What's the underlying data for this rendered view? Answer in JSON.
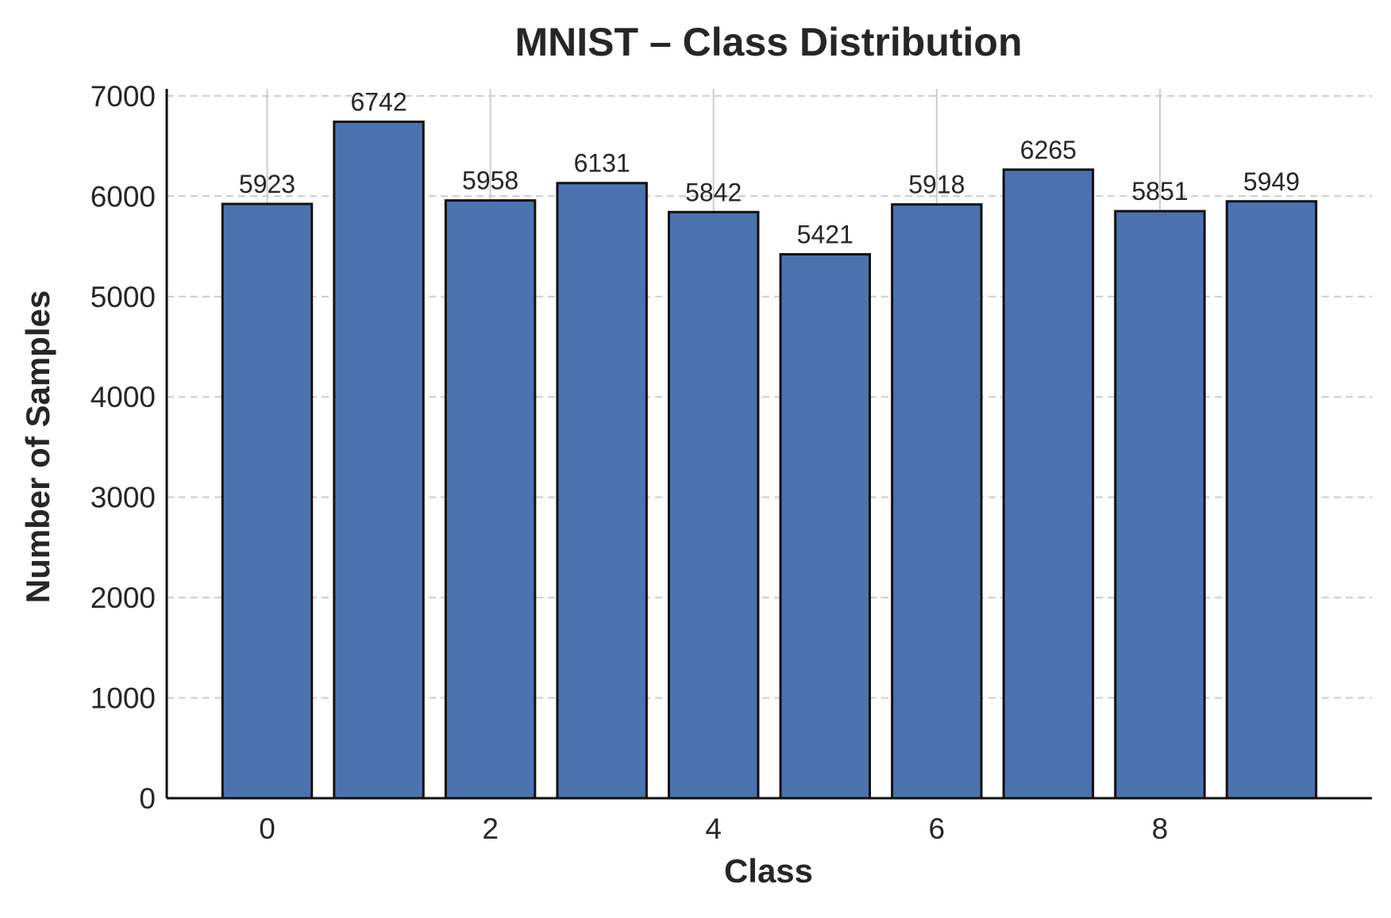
{
  "chart_data": {
    "type": "bar",
    "title": "MNIST – Class Distribution",
    "xlabel": "Class",
    "ylabel": "Number of Samples",
    "categories": [
      0,
      1,
      2,
      3,
      4,
      5,
      6,
      7,
      8,
      9
    ],
    "values": [
      5923,
      6742,
      5958,
      6131,
      5842,
      5421,
      5918,
      6265,
      5851,
      5949
    ],
    "data_labels": [
      "5923",
      "6742",
      "5958",
      "6131",
      "5842",
      "5421",
      "5918",
      "6265",
      "5851",
      "5949"
    ],
    "xticks": [
      "0",
      "2",
      "4",
      "6",
      "8"
    ],
    "xtick_values": [
      0,
      2,
      4,
      6,
      8
    ],
    "yticks": [
      "0",
      "1000",
      "2000",
      "3000",
      "4000",
      "5000",
      "6000",
      "7000"
    ],
    "ytick_values": [
      0,
      1000,
      2000,
      3000,
      4000,
      5000,
      6000,
      7000
    ],
    "xlim": [
      -0.9,
      9.9
    ],
    "ylim": [
      0,
      7070
    ],
    "grid": true,
    "colors": {
      "bar_fill": "#4c72b0",
      "bar_edge": "#111111",
      "grid": "#cccccc",
      "axis": "#111111",
      "text": "#262626"
    }
  }
}
